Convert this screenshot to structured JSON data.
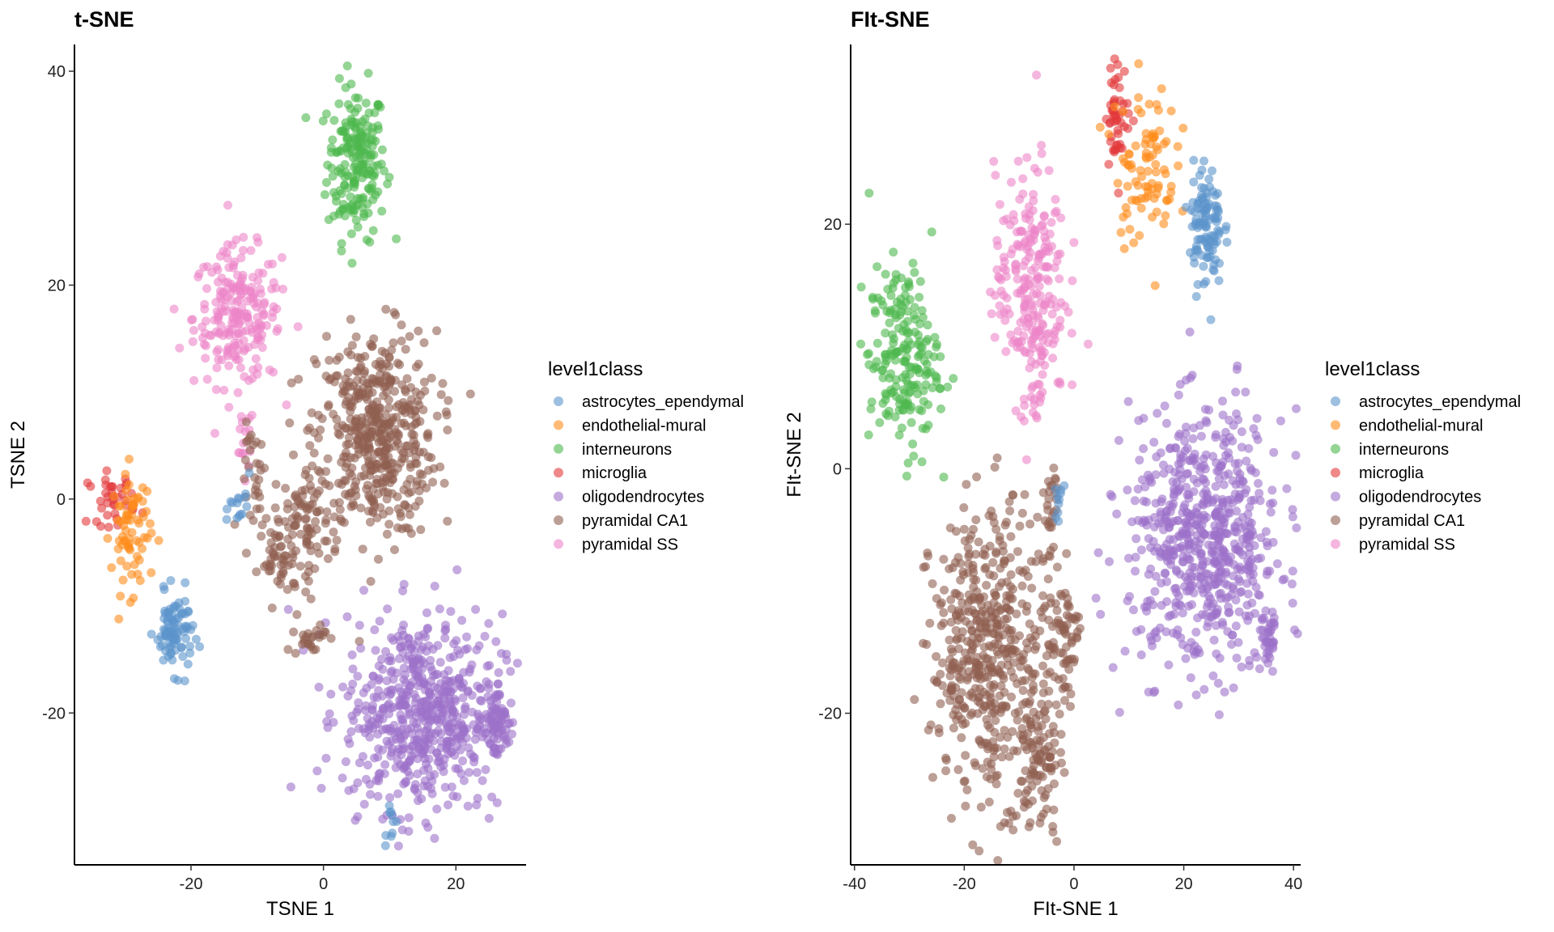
{
  "legend": {
    "title": "level1class",
    "items": [
      {
        "label": "astrocytes_ependymal",
        "color": "#5b95cc"
      },
      {
        "label": "endothelial-mural",
        "color": "#ff8c1a"
      },
      {
        "label": "interneurons",
        "color": "#4db84d"
      },
      {
        "label": "microglia",
        "color": "#e3393a"
      },
      {
        "label": "oligodendrocytes",
        "color": "#9d72c9"
      },
      {
        "label": "pyramidal CA1",
        "color": "#8f5f50"
      },
      {
        "label": "pyramidal SS",
        "color": "#ec86c8"
      }
    ]
  },
  "chart_data": [
    {
      "type": "scatter",
      "title": "t-SNE",
      "xlabel": "TSNE 1",
      "ylabel": "TSNE 2",
      "xlim": [
        -37.6,
        30.6
      ],
      "ylim": [
        -34.2,
        42.5
      ],
      "xticks": [
        -20,
        0,
        20
      ],
      "yticks": [
        -20,
        0,
        20,
        40
      ],
      "xtick_labels": [
        "-20",
        "0",
        "20"
      ],
      "ytick_labels": [
        "-20",
        "0",
        "20",
        "40"
      ],
      "grid": false,
      "legend_placement": "right",
      "point_alpha": 0.6,
      "clusters": [
        {
          "class": 2,
          "center": [
            5,
            31.5
          ],
          "sd": [
            2.2,
            3.6
          ],
          "n": 200
        },
        {
          "class": 6,
          "center": [
            -13,
            17
          ],
          "sd": [
            3.3,
            3.2
          ],
          "n": 220
        },
        {
          "class": 6,
          "center": [
            -12,
            5
          ],
          "sd": [
            0.8,
            2
          ],
          "n": 15
        },
        {
          "class": 5,
          "center": [
            8,
            6
          ],
          "sd": [
            4.5,
            4.8
          ],
          "n": 480
        },
        {
          "class": 5,
          "center": [
            -3,
            -2
          ],
          "sd": [
            2.2,
            2.8
          ],
          "n": 90
        },
        {
          "class": 5,
          "center": [
            -7,
            -6
          ],
          "sd": [
            1.4,
            1.6
          ],
          "n": 40
        },
        {
          "class": 5,
          "center": [
            -10,
            2
          ],
          "sd": [
            1.2,
            2.5
          ],
          "n": 30
        },
        {
          "class": 3,
          "center": [
            -32,
            0
          ],
          "sd": [
            1.8,
            1.2
          ],
          "n": 40
        },
        {
          "class": 1,
          "center": [
            -29,
            -3
          ],
          "sd": [
            1.5,
            2.8
          ],
          "n": 70
        },
        {
          "class": 0,
          "center": [
            -22.5,
            -12.5
          ],
          "sd": [
            1.4,
            1.8
          ],
          "n": 90
        },
        {
          "class": 0,
          "center": [
            -12.5,
            -1
          ],
          "sd": [
            0.8,
            1.5
          ],
          "n": 15
        },
        {
          "class": 4,
          "center": [
            15,
            -20
          ],
          "sd": [
            6,
            4.6
          ],
          "n": 600
        },
        {
          "class": 4,
          "center": [
            26,
            -21
          ],
          "sd": [
            1,
            1.8
          ],
          "n": 60
        },
        {
          "class": 5,
          "center": [
            -2,
            -13
          ],
          "sd": [
            1.2,
            0.8
          ],
          "n": 25
        },
        {
          "class": 0,
          "center": [
            10,
            -30
          ],
          "sd": [
            0.6,
            0.8
          ],
          "n": 10
        }
      ]
    },
    {
      "type": "scatter",
      "title": "FIt-SNE",
      "xlabel": "FIt-SNE 1",
      "ylabel": "FIt-SNE 2",
      "xlim": [
        -40.7,
        41.3
      ],
      "ylim": [
        -32.4,
        34.7
      ],
      "xticks": [
        -40,
        -20,
        0,
        20,
        40
      ],
      "yticks": [
        -20,
        0,
        20
      ],
      "xtick_labels": [
        "-40",
        "-20",
        "0",
        "20",
        "40"
      ],
      "ytick_labels": [
        "-20",
        "0",
        "20"
      ],
      "grid": false,
      "legend_placement": "right",
      "point_alpha": 0.6,
      "clusters": [
        {
          "class": 2,
          "center": [
            -31,
            9
          ],
          "sd": [
            3.2,
            3.8
          ],
          "n": 200
        },
        {
          "class": 6,
          "center": [
            -8,
            15
          ],
          "sd": [
            3.2,
            4.8
          ],
          "n": 240
        },
        {
          "class": 6,
          "center": [
            -7,
            6
          ],
          "sd": [
            0.8,
            1.5
          ],
          "n": 12
        },
        {
          "class": 3,
          "center": [
            8,
            29
          ],
          "sd": [
            1.1,
            2.1
          ],
          "n": 50
        },
        {
          "class": 1,
          "center": [
            13,
            25
          ],
          "sd": [
            2.8,
            3.3
          ],
          "n": 90
        },
        {
          "class": 0,
          "center": [
            24,
            20
          ],
          "sd": [
            1.5,
            2.5
          ],
          "n": 110
        },
        {
          "class": 4,
          "center": [
            24,
            -6
          ],
          "sd": [
            7,
            5.2
          ],
          "n": 650
        },
        {
          "class": 4,
          "center": [
            35,
            -14
          ],
          "sd": [
            1.1,
            1.8
          ],
          "n": 40
        },
        {
          "class": 5,
          "center": [
            -15,
            -15
          ],
          "sd": [
            5.5,
            5.8
          ],
          "n": 520
        },
        {
          "class": 5,
          "center": [
            -6,
            -24
          ],
          "sd": [
            1.8,
            3
          ],
          "n": 80
        },
        {
          "class": 5,
          "center": [
            -2,
            -14
          ],
          "sd": [
            1.4,
            2.5
          ],
          "n": 60
        },
        {
          "class": 5,
          "center": [
            -4,
            -3
          ],
          "sd": [
            0.8,
            2
          ],
          "n": 25
        },
        {
          "class": 0,
          "center": [
            -3,
            -3
          ],
          "sd": [
            0.5,
            1.2
          ],
          "n": 10
        }
      ]
    }
  ]
}
